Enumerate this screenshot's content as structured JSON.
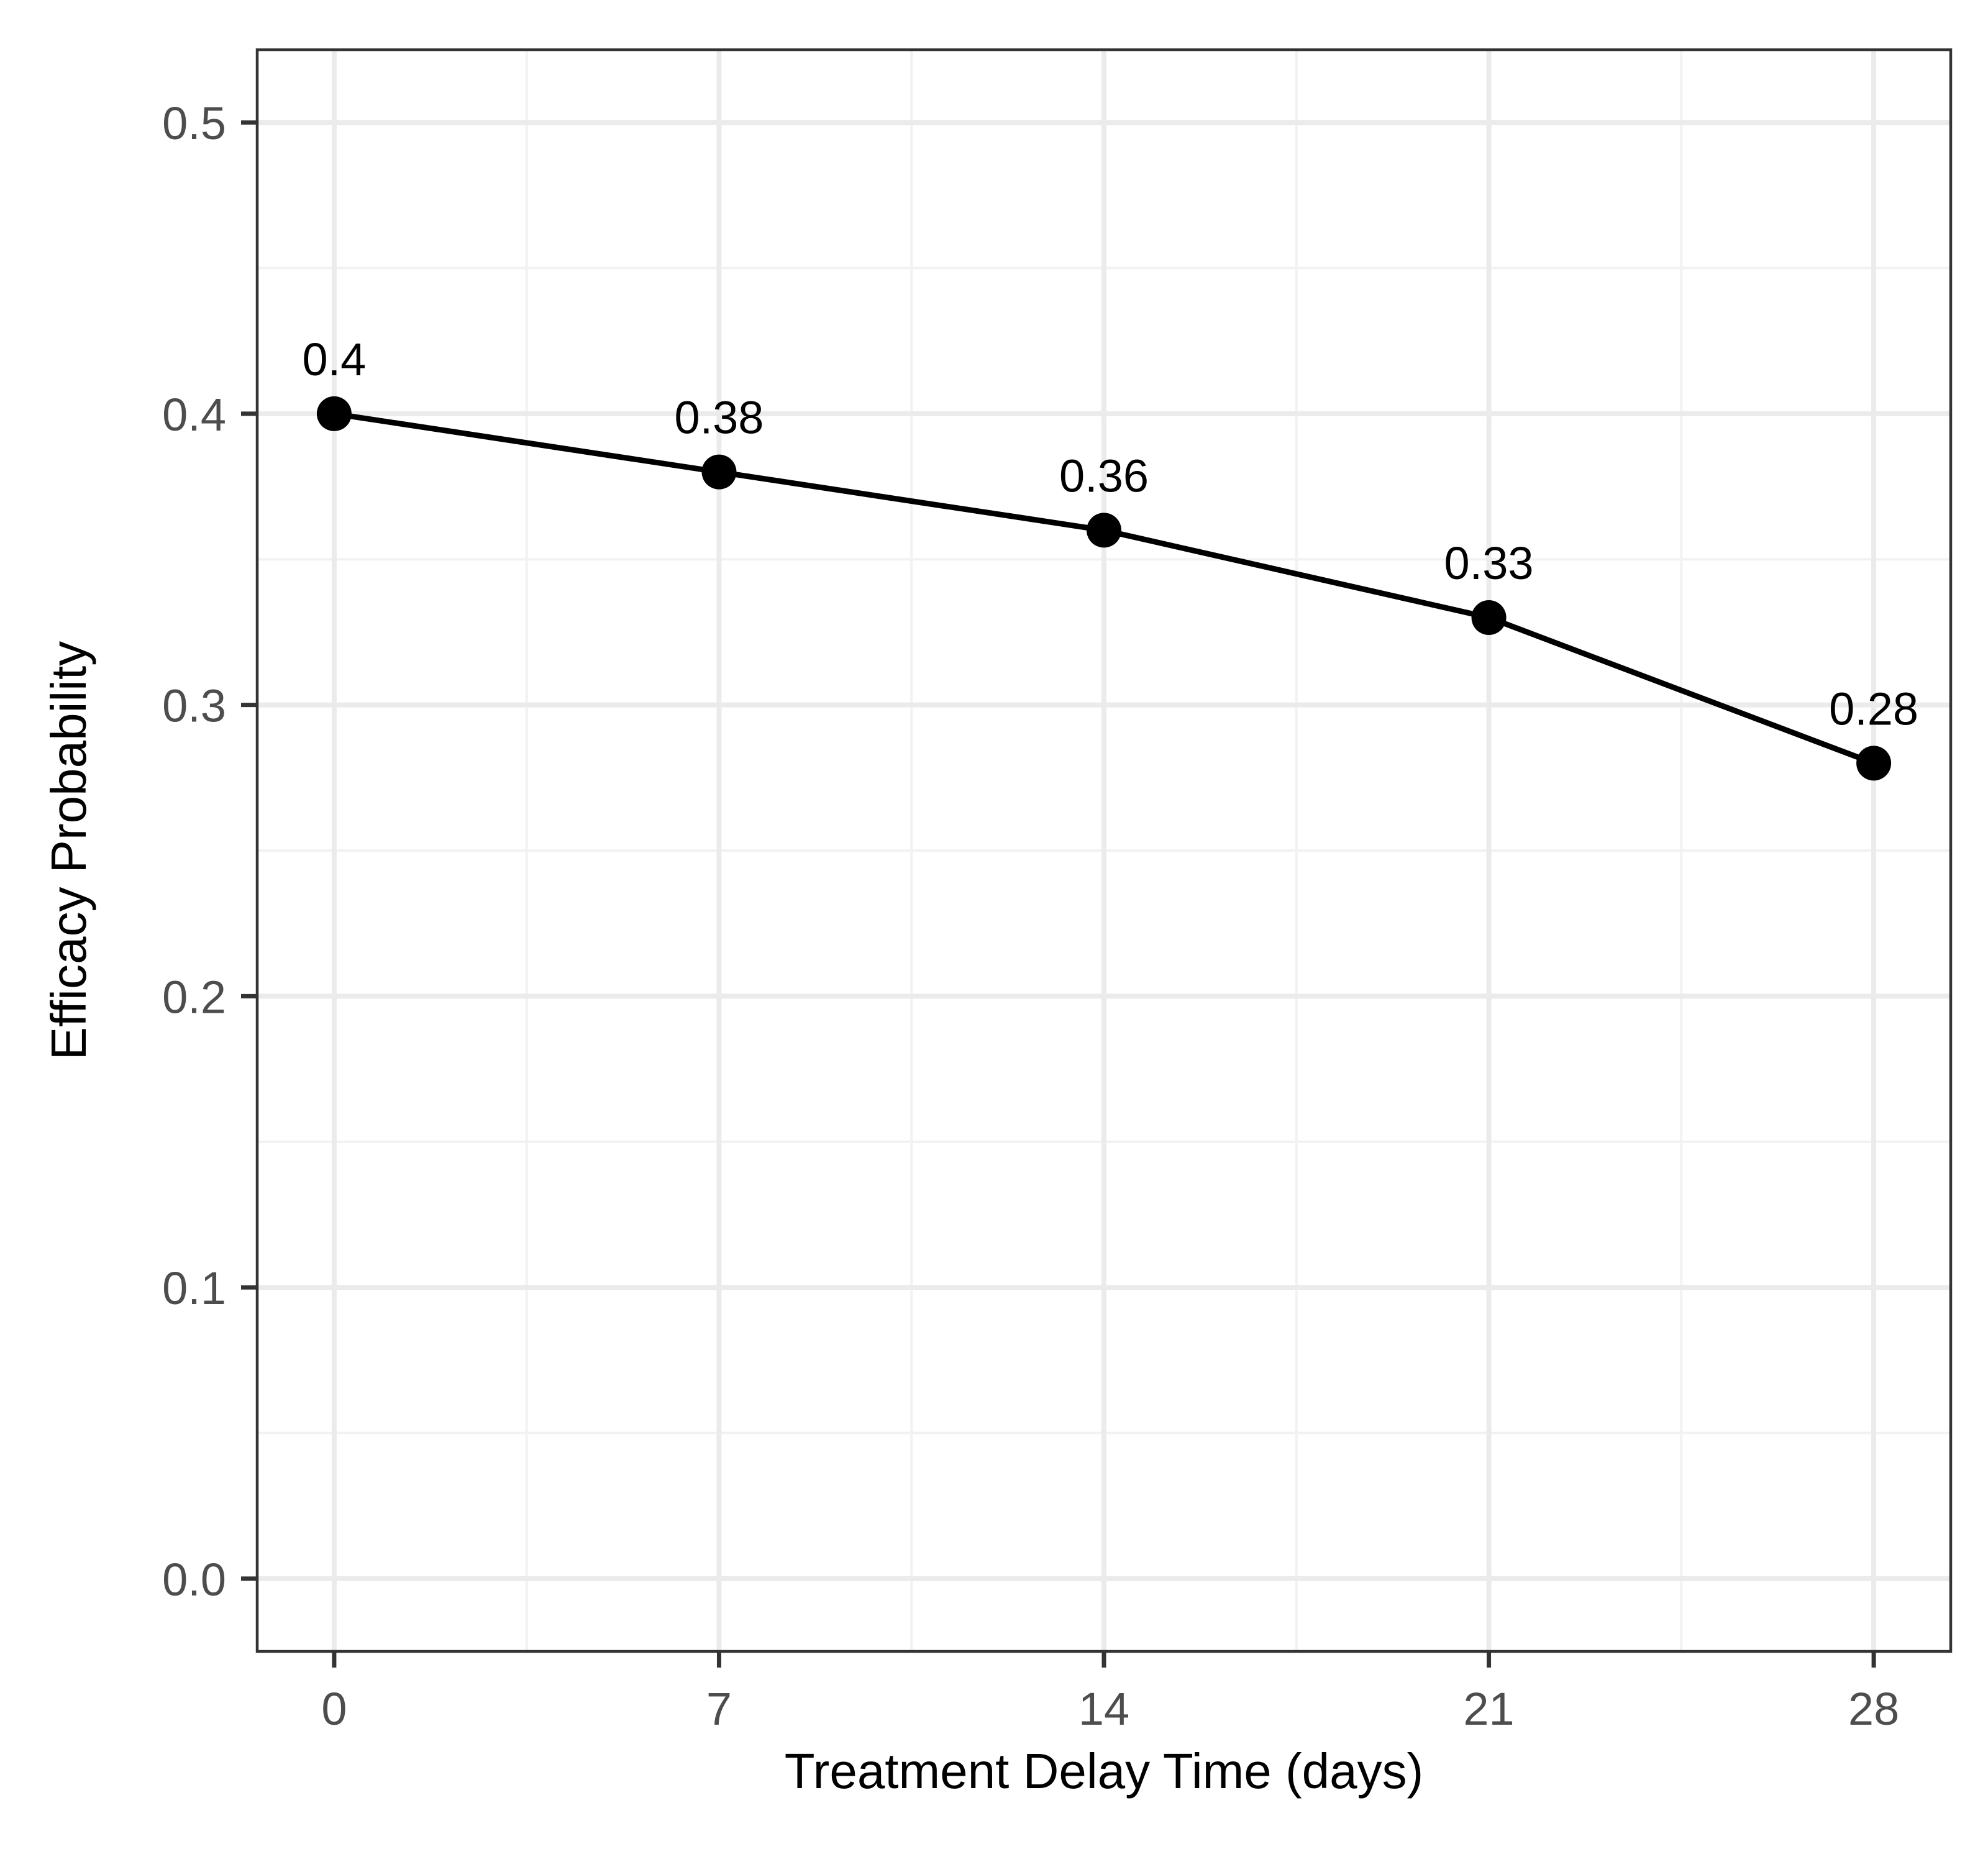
{
  "chart_data": {
    "type": "line",
    "title": "",
    "xlabel": "Treatment Delay Time (days)",
    "ylabel": "Efficacy Probability",
    "x": [
      0,
      7,
      14,
      21,
      28
    ],
    "series": [
      {
        "values": [
          0.4,
          0.38,
          0.36,
          0.33,
          0.28
        ]
      }
    ],
    "data_labels": [
      "0.4",
      "0.38",
      "0.36",
      "0.33",
      "0.28"
    ],
    "x_ticks": [
      {
        "value": 0,
        "label": "0"
      },
      {
        "value": 7,
        "label": "7"
      },
      {
        "value": 14,
        "label": "14"
      },
      {
        "value": 21,
        "label": "21"
      },
      {
        "value": 28,
        "label": "28"
      }
    ],
    "y_ticks": [
      {
        "value": 0.0,
        "label": "0.0"
      },
      {
        "value": 0.1,
        "label": "0.1"
      },
      {
        "value": 0.2,
        "label": "0.2"
      },
      {
        "value": 0.3,
        "label": "0.3"
      },
      {
        "value": 0.4,
        "label": "0.4"
      },
      {
        "value": 0.5,
        "label": "0.5"
      }
    ],
    "xlim": [
      -1.4,
      29.4
    ],
    "ylim": [
      -0.025,
      0.525
    ],
    "grid": true,
    "legend": "none",
    "colors": {
      "line": "#000000",
      "point": "#000000",
      "grid_major": "#ebebeb",
      "grid_minor": "#f2f2f2",
      "panel_border": "#333333",
      "tick_label": "#4d4d4d"
    }
  }
}
